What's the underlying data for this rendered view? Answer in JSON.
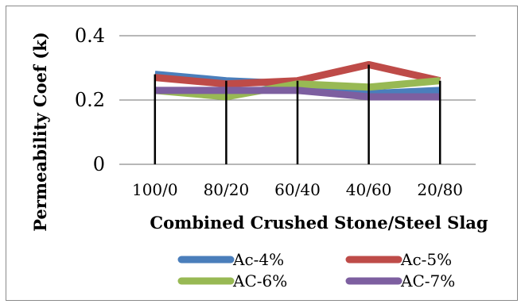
{
  "chart_data": {
    "type": "line",
    "title": "",
    "xlabel": "Combined Crushed Stone/Steel Slag",
    "ylabel": "Permeability Coef (k)",
    "categories": [
      "100/0",
      "80/20",
      "60/40",
      "40/60",
      "20/80"
    ],
    "ylim": [
      0,
      0.4
    ],
    "y_ticks": [
      "0",
      "0.2",
      "0.4"
    ],
    "grid": true,
    "legend_position": "bottom",
    "series": [
      {
        "name": "Ac-4%",
        "color": "#4a7ebb",
        "values": [
          0.28,
          0.26,
          0.25,
          0.22,
          0.23
        ]
      },
      {
        "name": "Ac-5%",
        "color": "#be4b48",
        "values": [
          0.27,
          0.25,
          0.26,
          0.31,
          0.26
        ]
      },
      {
        "name": "AC-6%",
        "color": "#98b954",
        "values": [
          0.23,
          0.21,
          0.25,
          0.24,
          0.26
        ]
      },
      {
        "name": "AC-7%",
        "color": "#7d5fa0",
        "values": [
          0.23,
          0.23,
          0.23,
          0.21,
          0.21
        ]
      }
    ],
    "drop_lines": true
  }
}
